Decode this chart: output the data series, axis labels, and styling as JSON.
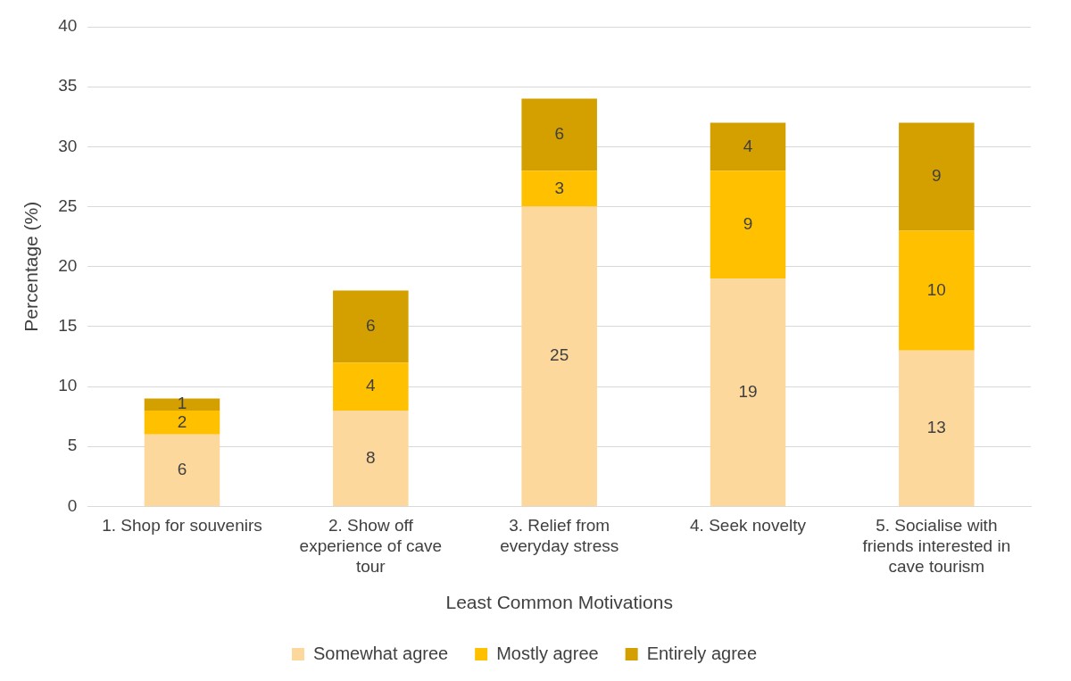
{
  "chart_data": {
    "type": "bar",
    "stacked": true,
    "xlabel": "Least Common Motivations",
    "ylabel": "Percentage (%)",
    "categories": [
      "1. Shop for souvenirs",
      "2. Show off experience of cave tour",
      "3. Relief from everyday stress",
      "4. Seek novelty",
      "5. Socialise with friends interested in cave tourism"
    ],
    "series": [
      {
        "name": "Somewhat agree",
        "color": "#fdd89d",
        "values": [
          6,
          8,
          25,
          19,
          13
        ]
      },
      {
        "name": "Mostly agree",
        "color": "#ffc000",
        "values": [
          2,
          4,
          3,
          9,
          10
        ]
      },
      {
        "name": "Entirely agree",
        "color": "#d4a000",
        "values": [
          1,
          6,
          6,
          4,
          9
        ]
      }
    ],
    "ylim": [
      0,
      40
    ],
    "yticks": [
      0,
      5,
      10,
      15,
      20,
      25,
      30,
      35,
      40
    ],
    "grid": "y",
    "legend": "bottom",
    "data_labels": true
  }
}
